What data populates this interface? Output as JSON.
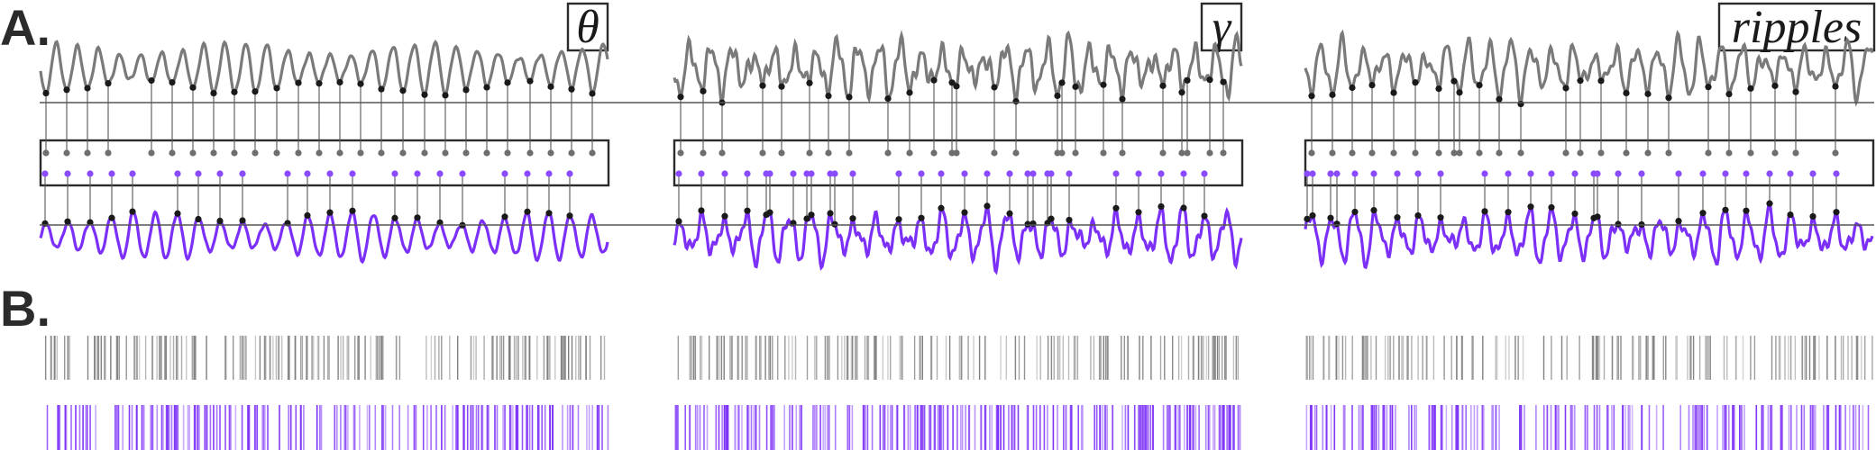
{
  "panel_labels": {
    "a": "A.",
    "b": "B."
  },
  "colors": {
    "gray_signal": "#7a7a7a",
    "purple_signal": "#7b2ff7",
    "gray_dot": "#6e6e6e",
    "purple_dot": "#8a4bff",
    "peak_dot": "#1a1a1a",
    "frame": "#2b2b2b",
    "gray_spike": "#7d7d7d",
    "purple_spike": "#7b2ff7"
  },
  "bands": [
    {
      "id": "theta",
      "label": "θ",
      "gray_events": 28,
      "purple_events": 21,
      "noise": 0.15,
      "seed": 11,
      "gray_spikes": 170,
      "purple_spikes": 180
    },
    {
      "id": "gamma",
      "label": "γ",
      "gray_events": 25,
      "purple_events": 28,
      "noise": 0.6,
      "seed": 23,
      "gray_spikes": 150,
      "purple_spikes": 210
    },
    {
      "id": "ripples",
      "label": "ripples",
      "gray_events": 24,
      "purple_events": 26,
      "noise": 0.55,
      "seed": 37,
      "gray_spikes": 140,
      "purple_spikes": 170
    }
  ]
}
